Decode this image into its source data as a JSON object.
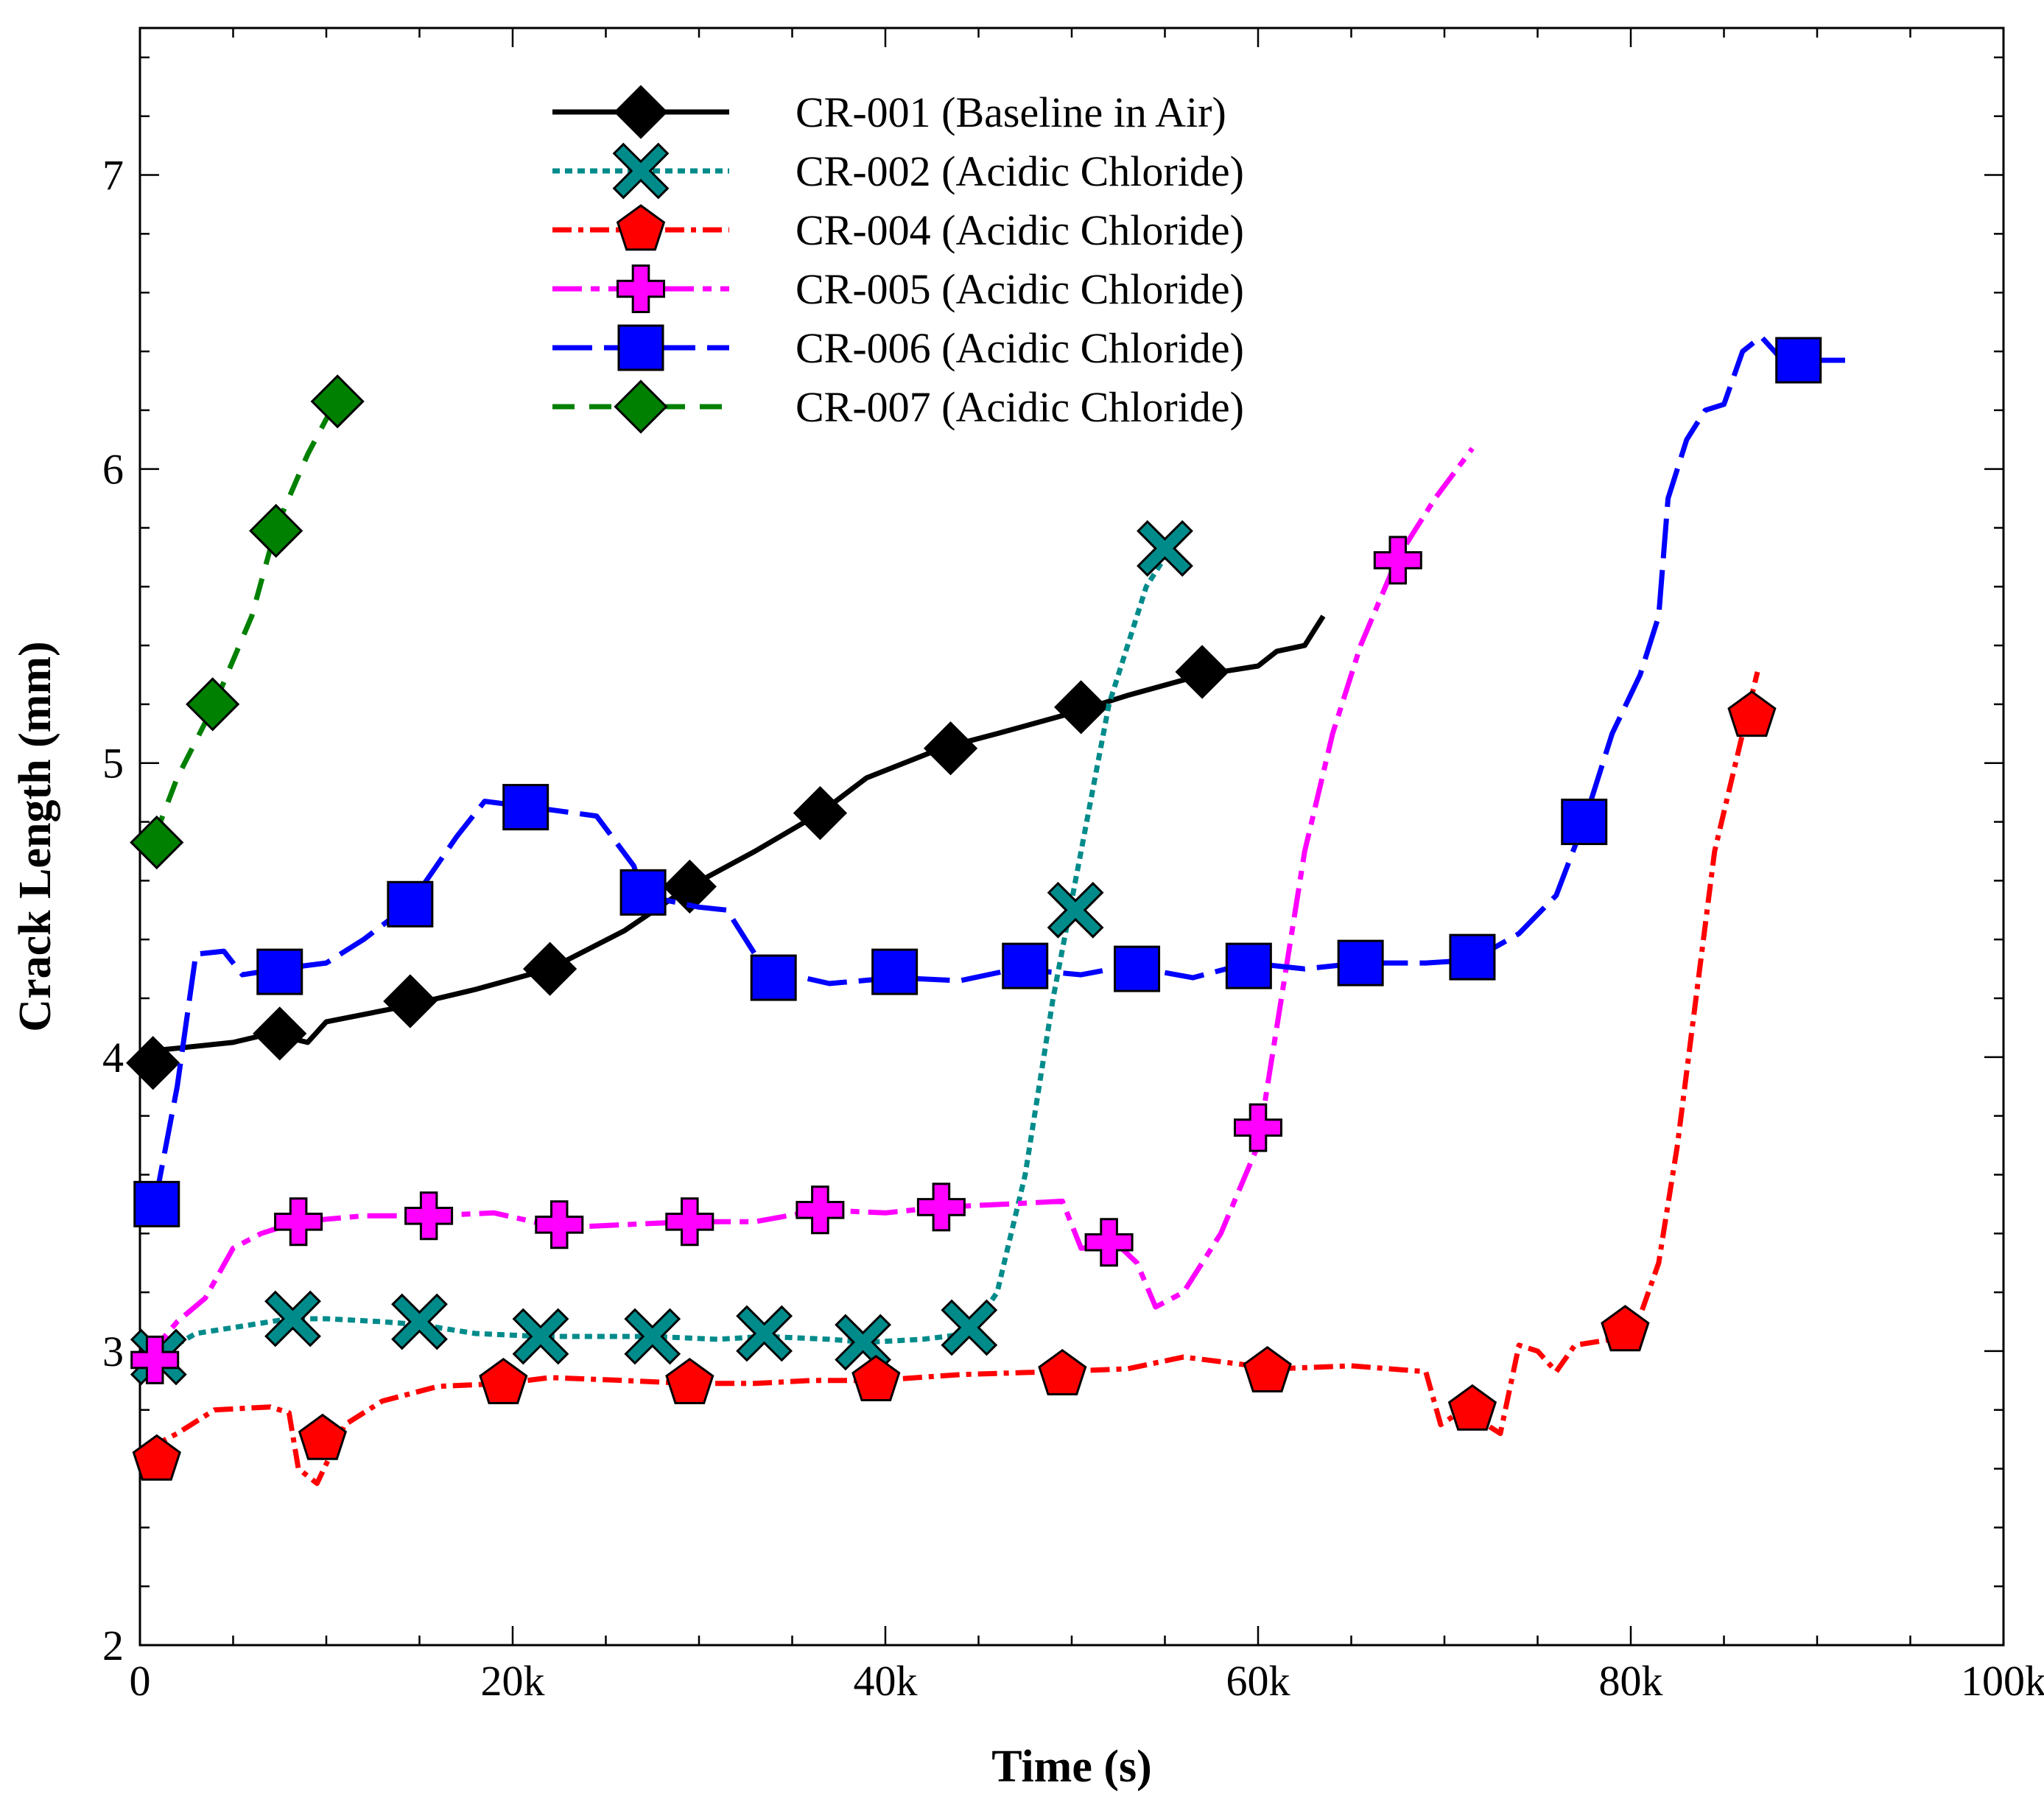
{
  "chart_data": {
    "type": "line",
    "title": "",
    "xlabel": "Time (s)",
    "ylabel": "Crack Length (mm)",
    "xlim": [
      0,
      100000
    ],
    "ylim": [
      2,
      7.5
    ],
    "xticks": [
      {
        "value": 0,
        "label": "0"
      },
      {
        "value": 20000,
        "label": "20k"
      },
      {
        "value": 40000,
        "label": "40k"
      },
      {
        "value": 60000,
        "label": "60k"
      },
      {
        "value": 80000,
        "label": "80k"
      },
      {
        "value": 100000,
        "label": "100k"
      }
    ],
    "yticks": [
      {
        "value": 2,
        "label": "2"
      },
      {
        "value": 3,
        "label": "3"
      },
      {
        "value": 4,
        "label": "4"
      },
      {
        "value": 5,
        "label": "5"
      },
      {
        "value": 6,
        "label": "6"
      },
      {
        "value": 7,
        "label": "7"
      }
    ],
    "grid": false,
    "legend_position": "top-center",
    "series": [
      {
        "name": "CR-001 (Baseline in Air)",
        "color": "#000000",
        "marker": "diamond",
        "line_style": "solid",
        "line": [
          [
            400,
            4.02
          ],
          [
            2000,
            4.03
          ],
          [
            5000,
            4.05
          ],
          [
            7000,
            4.08
          ],
          [
            9000,
            4.05
          ],
          [
            10000,
            4.12
          ],
          [
            14000,
            4.17
          ],
          [
            18000,
            4.23
          ],
          [
            22000,
            4.3
          ],
          [
            26000,
            4.43
          ],
          [
            29500,
            4.58
          ],
          [
            33000,
            4.7
          ],
          [
            36500,
            4.83
          ],
          [
            39000,
            4.95
          ],
          [
            43000,
            5.05
          ],
          [
            46000,
            5.1
          ],
          [
            50000,
            5.17
          ],
          [
            53000,
            5.23
          ],
          [
            57000,
            5.3
          ],
          [
            60000,
            5.33
          ],
          [
            61000,
            5.38
          ],
          [
            62500,
            5.4
          ],
          [
            63500,
            5.5
          ]
        ],
        "markers": [
          [
            700,
            3.98
          ],
          [
            7500,
            4.08
          ],
          [
            14500,
            4.19
          ],
          [
            22000,
            4.3
          ],
          [
            29500,
            4.58
          ],
          [
            36500,
            4.83
          ],
          [
            43500,
            5.05
          ],
          [
            50500,
            5.19
          ],
          [
            57000,
            5.31
          ]
        ]
      },
      {
        "name": "CR-002 (Acidic Chloride)",
        "color": "#008b8b",
        "marker": "x",
        "line_style": "dotted",
        "line": [
          [
            800,
            2.98
          ],
          [
            3000,
            3.06
          ],
          [
            6000,
            3.09
          ],
          [
            8000,
            3.11
          ],
          [
            10000,
            3.11
          ],
          [
            13000,
            3.1
          ],
          [
            15000,
            3.09
          ],
          [
            18000,
            3.06
          ],
          [
            21500,
            3.05
          ],
          [
            25000,
            3.05
          ],
          [
            27500,
            3.05
          ],
          [
            31000,
            3.04
          ],
          [
            33500,
            3.05
          ],
          [
            37000,
            3.04
          ],
          [
            39000,
            3.03
          ],
          [
            42000,
            3.04
          ],
          [
            44500,
            3.06
          ],
          [
            46000,
            3.2
          ],
          [
            47500,
            3.6
          ],
          [
            49000,
            4.2
          ],
          [
            50500,
            4.7
          ],
          [
            52000,
            5.2
          ],
          [
            54000,
            5.6
          ],
          [
            55200,
            5.72
          ]
        ],
        "markers": [
          [
            1000,
            2.98
          ],
          [
            8200,
            3.11
          ],
          [
            15000,
            3.1
          ],
          [
            21500,
            3.05
          ],
          [
            27500,
            3.05
          ],
          [
            33500,
            3.06
          ],
          [
            38800,
            3.03
          ],
          [
            44500,
            3.08
          ],
          [
            50200,
            4.5
          ],
          [
            55000,
            5.73
          ]
        ]
      },
      {
        "name": "CR-004 (Acidic Chloride)",
        "color": "#ff0000",
        "marker": "pentagon",
        "line_style": "dash-dot",
        "line": [
          [
            500,
            2.67
          ],
          [
            2000,
            2.72
          ],
          [
            4000,
            2.8
          ],
          [
            7000,
            2.81
          ],
          [
            8000,
            2.79
          ],
          [
            8500,
            2.6
          ],
          [
            9500,
            2.55
          ],
          [
            11000,
            2.75
          ],
          [
            13000,
            2.83
          ],
          [
            16000,
            2.88
          ],
          [
            19500,
            2.89
          ],
          [
            22000,
            2.91
          ],
          [
            26000,
            2.9
          ],
          [
            29500,
            2.89
          ],
          [
            33000,
            2.89
          ],
          [
            36000,
            2.9
          ],
          [
            39500,
            2.9
          ],
          [
            44000,
            2.92
          ],
          [
            49000,
            2.93
          ],
          [
            53000,
            2.94
          ],
          [
            56000,
            2.98
          ],
          [
            61000,
            2.94
          ],
          [
            65000,
            2.95
          ],
          [
            69000,
            2.93
          ],
          [
            69800,
            2.75
          ],
          [
            71000,
            2.8
          ],
          [
            73000,
            2.72
          ],
          [
            74000,
            3.02
          ],
          [
            75000,
            3.0
          ],
          [
            76000,
            2.93
          ],
          [
            77000,
            3.02
          ],
          [
            79000,
            3.04
          ],
          [
            80500,
            3.12
          ],
          [
            81500,
            3.3
          ],
          [
            82500,
            3.7
          ],
          [
            83500,
            4.2
          ],
          [
            84500,
            4.7
          ],
          [
            86000,
            5.1
          ],
          [
            86800,
            5.31
          ]
        ],
        "markers": [
          [
            900,
            2.63
          ],
          [
            9800,
            2.7
          ],
          [
            19500,
            2.89
          ],
          [
            29500,
            2.89
          ],
          [
            39500,
            2.9
          ],
          [
            49500,
            2.92
          ],
          [
            60500,
            2.93
          ],
          [
            71500,
            2.8
          ],
          [
            79700,
            3.07
          ],
          [
            86500,
            5.16
          ]
        ]
      },
      {
        "name": "CR-005 (Acidic Chloride)",
        "color": "#ff00ff",
        "marker": "plus",
        "line_style": "dash-dot-long",
        "line": [
          [
            400,
            2.98
          ],
          [
            2000,
            3.1
          ],
          [
            3500,
            3.18
          ],
          [
            5000,
            3.35
          ],
          [
            6500,
            3.4
          ],
          [
            8500,
            3.44
          ],
          [
            12000,
            3.46
          ],
          [
            15500,
            3.46
          ],
          [
            19000,
            3.47
          ],
          [
            22500,
            3.42
          ],
          [
            26000,
            3.43
          ],
          [
            29500,
            3.44
          ],
          [
            33000,
            3.44
          ],
          [
            36500,
            3.48
          ],
          [
            40000,
            3.47
          ],
          [
            43000,
            3.49
          ],
          [
            46500,
            3.5
          ],
          [
            49500,
            3.51
          ],
          [
            50500,
            3.35
          ],
          [
            52500,
            3.36
          ],
          [
            53500,
            3.3
          ],
          [
            54500,
            3.15
          ],
          [
            56000,
            3.2
          ],
          [
            58000,
            3.4
          ],
          [
            60000,
            3.7
          ],
          [
            61000,
            4.1
          ],
          [
            62500,
            4.7
          ],
          [
            64000,
            5.1
          ],
          [
            65500,
            5.4
          ],
          [
            67500,
            5.7
          ],
          [
            69500,
            5.9
          ],
          [
            71500,
            6.07
          ]
        ],
        "markers": [
          [
            800,
            2.97
          ],
          [
            8500,
            3.44
          ],
          [
            15500,
            3.46
          ],
          [
            22500,
            3.43
          ],
          [
            29500,
            3.44
          ],
          [
            36500,
            3.48
          ],
          [
            43000,
            3.49
          ],
          [
            52000,
            3.37
          ],
          [
            60000,
            3.76
          ],
          [
            67500,
            5.69
          ]
        ]
      },
      {
        "name": "CR-006 (Acidic Chloride)",
        "color": "#0000ff",
        "marker": "square",
        "line_style": "long-dash",
        "line": [
          [
            800,
            3.5
          ],
          [
            2000,
            3.9
          ],
          [
            3000,
            4.35
          ],
          [
            4500,
            4.36
          ],
          [
            5500,
            4.28
          ],
          [
            7500,
            4.3
          ],
          [
            10000,
            4.32
          ],
          [
            12000,
            4.4
          ],
          [
            14500,
            4.52
          ],
          [
            17000,
            4.75
          ],
          [
            18500,
            4.87
          ],
          [
            21000,
            4.85
          ],
          [
            24500,
            4.82
          ],
          [
            26500,
            4.65
          ],
          [
            27000,
            4.55
          ],
          [
            30000,
            4.51
          ],
          [
            31500,
            4.5
          ],
          [
            33500,
            4.3
          ],
          [
            37000,
            4.25
          ],
          [
            40500,
            4.27
          ],
          [
            44000,
            4.26
          ],
          [
            47000,
            4.3
          ],
          [
            50500,
            4.28
          ],
          [
            53000,
            4.31
          ],
          [
            56500,
            4.27
          ],
          [
            59500,
            4.32
          ],
          [
            62500,
            4.3
          ],
          [
            65500,
            4.32
          ],
          [
            69000,
            4.32
          ],
          [
            71500,
            4.33
          ],
          [
            74000,
            4.42
          ],
          [
            76000,
            4.55
          ],
          [
            77500,
            4.8
          ],
          [
            79000,
            5.1
          ],
          [
            80500,
            5.3
          ],
          [
            81500,
            5.5
          ],
          [
            82000,
            5.9
          ],
          [
            83000,
            6.1
          ],
          [
            84000,
            6.2
          ],
          [
            85000,
            6.22
          ],
          [
            86000,
            6.4
          ],
          [
            87000,
            6.45
          ],
          [
            88000,
            6.38
          ],
          [
            89000,
            6.37
          ],
          [
            92000,
            6.37
          ]
        ],
        "markers": [
          [
            900,
            3.5
          ],
          [
            7500,
            4.29
          ],
          [
            14500,
            4.52
          ],
          [
            20700,
            4.85
          ],
          [
            27000,
            4.56
          ],
          [
            34000,
            4.27
          ],
          [
            40500,
            4.29
          ],
          [
            47500,
            4.31
          ],
          [
            53500,
            4.3
          ],
          [
            59500,
            4.31
          ],
          [
            65500,
            4.32
          ],
          [
            71500,
            4.34
          ],
          [
            77500,
            4.8
          ],
          [
            89000,
            6.37
          ]
        ]
      },
      {
        "name": "CR-007 (Acidic Chloride)",
        "color": "#008000",
        "marker": "diamond",
        "line_style": "dashed",
        "line": [
          [
            800,
            4.75
          ],
          [
            2000,
            4.95
          ],
          [
            4000,
            5.2
          ],
          [
            6000,
            5.5
          ],
          [
            7300,
            5.8
          ],
          [
            9000,
            6.05
          ],
          [
            10500,
            6.23
          ]
        ],
        "markers": [
          [
            900,
            4.73
          ],
          [
            3900,
            5.2
          ],
          [
            7300,
            5.79
          ],
          [
            10600,
            6.23
          ]
        ]
      }
    ]
  }
}
